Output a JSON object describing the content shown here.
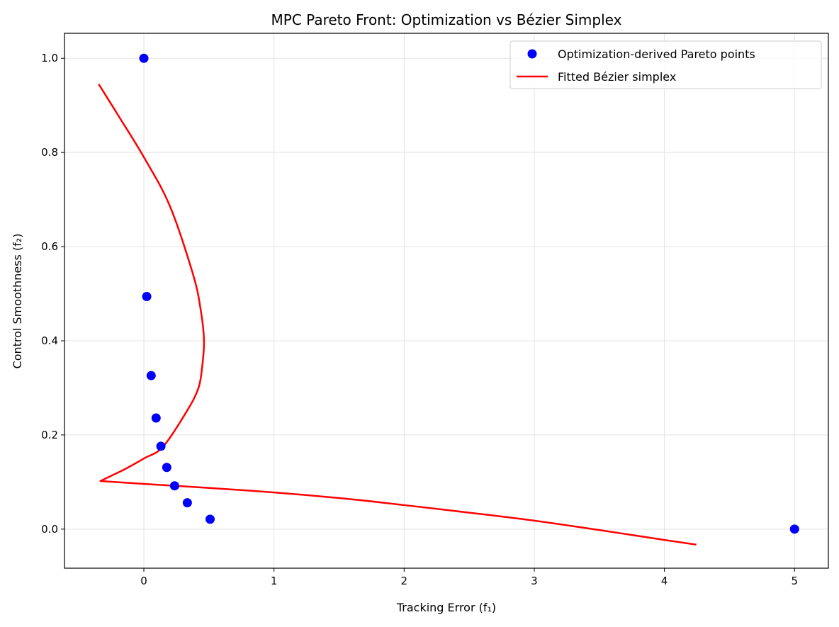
{
  "chart_data": {
    "type": "scatter",
    "title": "MPC Pareto Front: Optimization vs Bézier Simplex",
    "xlabel": "Tracking Error (f₁)",
    "ylabel": "Control Smoothness (f₂)",
    "xlim": [
      -0.61,
      5.26
    ],
    "ylim": [
      -0.083,
      1.053
    ],
    "xticks": [
      0,
      1,
      2,
      3,
      4,
      5
    ],
    "xtick_labels": [
      "0",
      "1",
      "2",
      "3",
      "4",
      "5"
    ],
    "yticks": [
      0.0,
      0.2,
      0.4,
      0.6,
      0.8,
      1.0
    ],
    "ytick_labels": [
      "0.0",
      "0.2",
      "0.4",
      "0.6",
      "0.8",
      "1.0"
    ],
    "grid": true,
    "legend_position": "top-right",
    "series": [
      {
        "name": "Optimization-derived Pareto points",
        "kind": "scatter",
        "color": "#0000ff",
        "x": [
          0.0,
          0.022,
          0.056,
          0.094,
          0.131,
          0.176,
          0.236,
          0.334,
          0.509,
          5.0
        ],
        "y": [
          1.0,
          0.494,
          0.326,
          0.236,
          0.176,
          0.131,
          0.092,
          0.056,
          0.021,
          0.0
        ]
      },
      {
        "name": "Fitted Bézier simplex",
        "kind": "line",
        "color": "#ff0000",
        "x": [
          -0.347,
          -0.2,
          0.0,
          0.2,
          0.38,
          0.44,
          0.462,
          0.45,
          0.42,
          0.329,
          0.147,
          0.0,
          -0.162,
          -0.334,
          0.0,
          0.8,
          1.5,
          2.0,
          2.5,
          3.0,
          3.5,
          4.0,
          4.245
        ],
        "y": [
          0.945,
          0.88,
          0.79,
          0.686,
          0.539,
          0.46,
          0.4,
          0.35,
          0.3,
          0.25,
          0.175,
          0.15,
          0.125,
          0.102,
          0.096,
          0.082,
          0.066,
          0.051,
          0.035,
          0.018,
          -0.002,
          -0.023,
          -0.033
        ]
      }
    ]
  }
}
